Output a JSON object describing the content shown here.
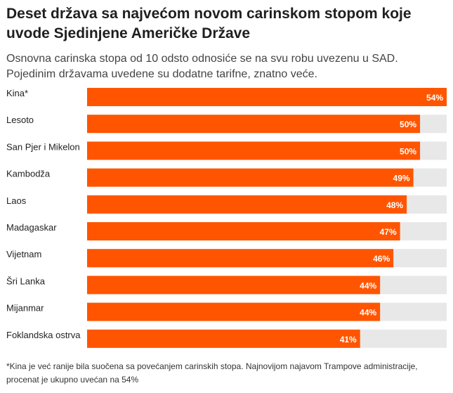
{
  "title": "Deset država sa najvećom novom carinskom stopom koje uvode Sjedinjene Američke Države",
  "subtitle": "Osnovna carinska stopa od 10 odsto odnosiće se na svu robu uvezenu u SAD. Pojedinim državama uvedene su dodatne tarifne, znatno veće.",
  "footnote": "*Kina je već ranije bila suočena sa povećanjem carinskih stopa. Najnovijom najavom Trampove administracije, procenat je ukupno uvećan na 54%",
  "chart_data": {
    "type": "bar",
    "orientation": "horizontal",
    "categories": [
      "Kina*",
      "Lesoto",
      "San Pjer i Mikelon",
      "Kambodža",
      "Laos",
      "Madagaskar",
      "Vijetnam",
      "Šri Lanka",
      "Mijanmar",
      "Foklandska ostrva"
    ],
    "values": [
      54,
      50,
      50,
      49,
      48,
      47,
      46,
      44,
      44,
      41
    ],
    "value_suffix": "%",
    "xlim": [
      0,
      54
    ],
    "grid": false,
    "colors": {
      "bar": "#ff5500",
      "track": "#e8e8e8",
      "value_text": "#ffffff"
    }
  }
}
